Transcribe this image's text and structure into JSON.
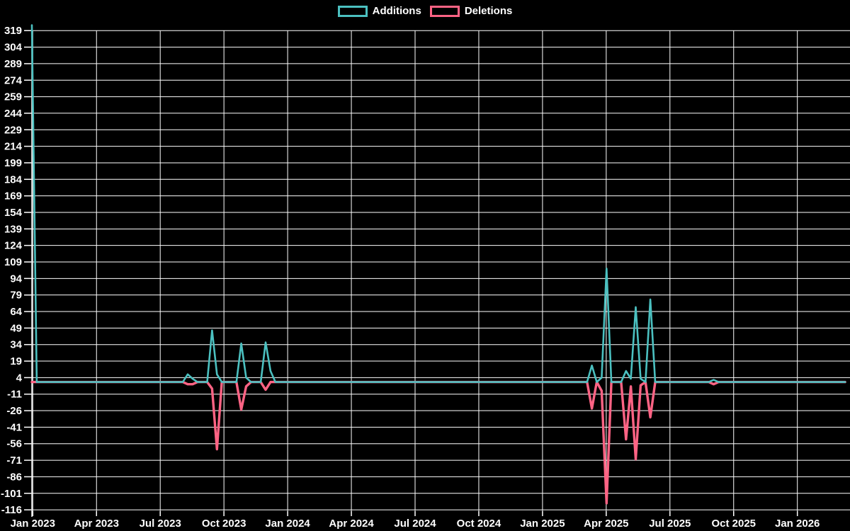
{
  "legend": {
    "position": "top-center",
    "items": [
      {
        "id": "additions",
        "label": "Additions",
        "color": "#4bc0c0"
      },
      {
        "id": "deletions",
        "label": "Deletions",
        "color": "#ff6384"
      }
    ]
  },
  "colors": {
    "background": "#000000",
    "grid": "#ffffff",
    "axis_text": "#ffffff",
    "additions": "#4bc0c0",
    "deletions": "#ff6384"
  },
  "chart_data": {
    "type": "line",
    "title": "",
    "xlabel": "",
    "ylabel": "",
    "grid": true,
    "legend_position": "top",
    "x_unit": "week",
    "weeks": 168,
    "x_axis": {
      "tick_labels": [
        "Jan 2023",
        "Apr 2023",
        "Jul 2023",
        "Oct 2023",
        "Jan 2024",
        "Apr 2024",
        "Jul 2024",
        "Oct 2024",
        "Jan 2025",
        "Apr 2025",
        "Jul 2025",
        "Oct 2025",
        "Jan 2026"
      ]
    },
    "y_axis": {
      "ticks": [
        319,
        304,
        289,
        274,
        259,
        244,
        229,
        214,
        199,
        184,
        169,
        154,
        139,
        124,
        109,
        94,
        79,
        64,
        49,
        34,
        19,
        4,
        -11,
        -26,
        -41,
        -56,
        -71,
        -86,
        -101,
        -116
      ],
      "ylim": [
        -117.3,
        324.4
      ]
    },
    "series": [
      {
        "name": "Additions",
        "color": "#4bc0c0",
        "default_value": 0,
        "points_by_week": {
          "0": 324,
          "32": 7,
          "33": 3,
          "37": 47,
          "38": 7,
          "43": 35,
          "44": 4,
          "48": 36,
          "49": 10,
          "115": 15,
          "117": 4,
          "118": 103,
          "122": 10,
          "123": 3,
          "124": 68,
          "125": 3,
          "127": 75,
          "140": 2
        }
      },
      {
        "name": "Deletions",
        "color": "#ff6384",
        "default_value": 0,
        "points_by_week": {
          "32": -2,
          "33": -2,
          "37": -6,
          "38": -61,
          "43": -25,
          "44": -4,
          "48": -7,
          "115": -24,
          "117": -8,
          "118": -110,
          "122": -52,
          "123": -4,
          "124": -70,
          "125": -3,
          "127": -32,
          "140": -2
        }
      }
    ]
  }
}
